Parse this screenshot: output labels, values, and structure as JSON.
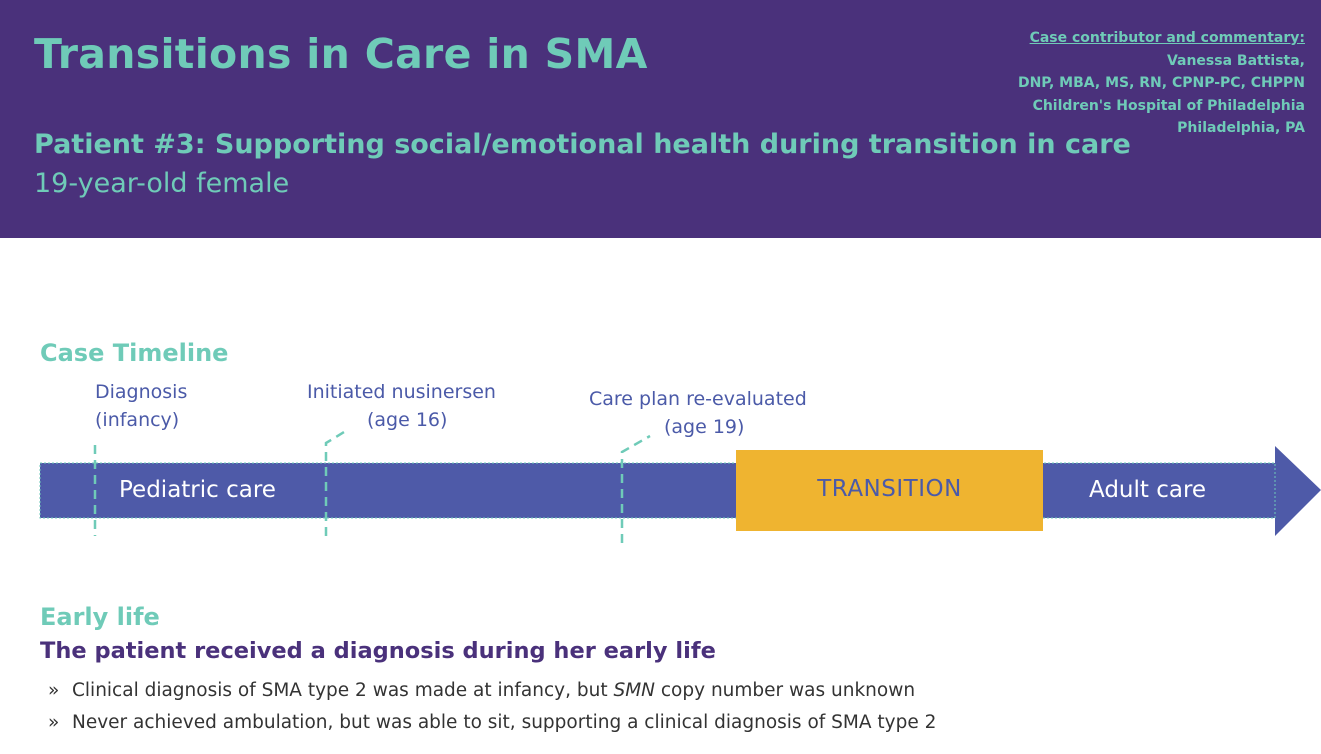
{
  "header": {
    "title": "Transitions in Care in SMA",
    "subtitle": "Patient #3: Supporting social/emotional health during transition in care",
    "patient": "19-year-old female",
    "contributor": {
      "heading": "Case contributor and commentary:",
      "lines": [
        "Vanessa Battista,",
        "DNP, MBA, MS, RN, CPNP-PC, CHPPN",
        "Children's Hospital of Philadelphia",
        "Philadelphia, PA"
      ]
    }
  },
  "timeline": {
    "label": "Case Timeline",
    "milestones": [
      {
        "line1": "Diagnosis",
        "line2": "(infancy)"
      },
      {
        "line1": "Initiated nusinersen",
        "line2": "(age 16)"
      },
      {
        "line1": "Care plan re-evaluated",
        "line2": "(age 19)"
      }
    ],
    "segments": {
      "pediatric": "Pediatric care",
      "transition": "TRANSITION",
      "adult": "Adult care"
    },
    "colors": {
      "bar": "#4e5aa8",
      "transition": "#efb430",
      "accent": "#6fcbb8"
    }
  },
  "early_life": {
    "label": "Early life",
    "lead": "The patient received a diagnosis during her early life",
    "bullet_mark": "»",
    "bullets": [
      {
        "before": "Clinical diagnosis of SMA type 2 was made at infancy, but ",
        "italic": "SMN",
        "after": " copy number was unknown"
      },
      {
        "before": "Never achieved ambulation, but was able to sit, supporting a clinical diagnosis of SMA type 2",
        "italic": "",
        "after": ""
      }
    ]
  },
  "palette": {
    "header_bg": "#4a317b",
    "teal": "#6fcbb8",
    "purple_text": "#4a317b"
  }
}
